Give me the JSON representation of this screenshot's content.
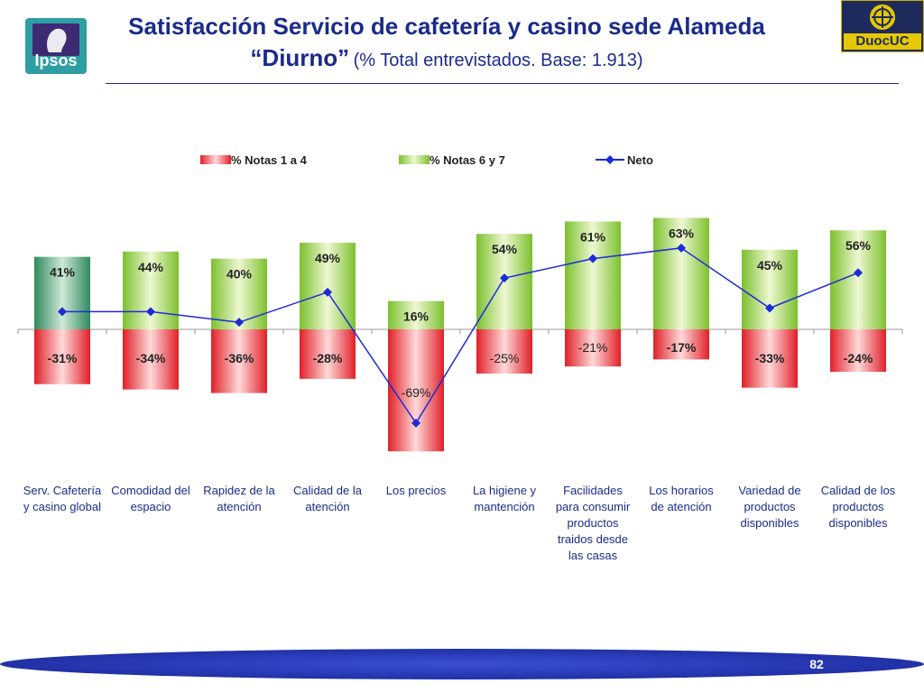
{
  "header": {
    "title_line1": "Satisfacción Servicio de cafetería y casino sede Alameda",
    "title_line2": "“Diurno”",
    "title_note": "(% Total entrevistados. Base: 1.913)",
    "logo_left_text": "Ipsos",
    "logo_right_text": "DuocUC"
  },
  "footer": {
    "page_number": "82"
  },
  "colors": {
    "title": "#1a2b8a",
    "negative": "#e8383a",
    "positive": "#8cc63f",
    "first_positive": "#3f9a68",
    "neto_line": "#1c2bd8",
    "footer_band": "#2233b8"
  },
  "chart_data": {
    "type": "bar",
    "categories": [
      [
        "Serv. Cafetería",
        "y casino global"
      ],
      [
        "Comodidad del",
        "espacio"
      ],
      [
        "Rapidez de la",
        "atención"
      ],
      [
        "Calidad de la",
        "atención"
      ],
      [
        "Los precios"
      ],
      [
        "La higiene y",
        "mantención"
      ],
      [
        "Facilidades",
        "para consumir",
        "productos",
        "traidos desde",
        "las casas"
      ],
      [
        "Los horarios",
        "de atención"
      ],
      [
        "Variedad de",
        "productos",
        "disponibles"
      ],
      [
        "Calidad de los",
        "productos",
        "disponibles"
      ]
    ],
    "series": [
      {
        "name": "% Notas 1 a 4",
        "type": "bar",
        "values": [
          -31,
          -34,
          -36,
          -28,
          -69,
          -25,
          -21,
          -17,
          -33,
          -24
        ],
        "labels": [
          "-31%",
          "-34%",
          "-36%",
          "-28%",
          "-69%",
          "-25%",
          "-21%",
          "-17%",
          "-33%",
          "-24%"
        ],
        "label_bold": [
          true,
          true,
          true,
          true,
          false,
          false,
          false,
          true,
          true,
          true
        ]
      },
      {
        "name": "% Notas 6 y 7",
        "type": "bar",
        "values": [
          41,
          44,
          40,
          49,
          16,
          54,
          61,
          63,
          45,
          56
        ],
        "labels": [
          "41%",
          "44%",
          "40%",
          "49%",
          "16%",
          "54%",
          "61%",
          "63%",
          "45%",
          "56%"
        ]
      },
      {
        "name": "Neto",
        "type": "line",
        "values": [
          10,
          10,
          4,
          21,
          -53,
          29,
          40,
          46,
          12,
          32
        ]
      }
    ]
  }
}
